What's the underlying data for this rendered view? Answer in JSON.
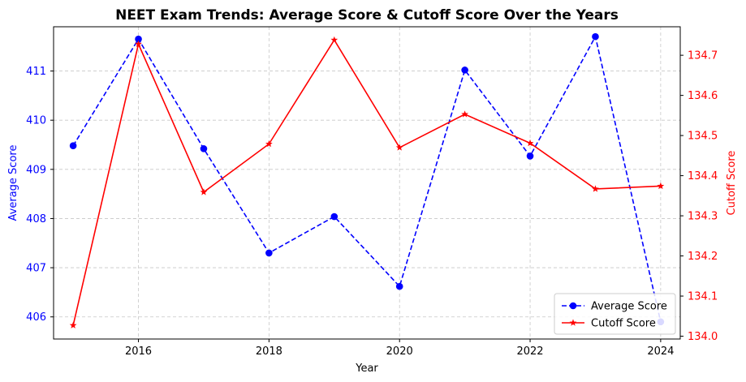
{
  "chart_data": {
    "type": "line",
    "title": "NEET Exam Trends: Average Score & Cutoff Score Over the Years",
    "xlabel": "Year",
    "ylabel_left": "Average Score",
    "ylabel_right": "Cutoff Score",
    "x": [
      2015,
      2016,
      2017,
      2018,
      2019,
      2020,
      2021,
      2022,
      2023,
      2024
    ],
    "xlim": [
      2014.7,
      2024.3
    ],
    "x_ticks": [
      2016,
      2018,
      2020,
      2022,
      2024
    ],
    "series": [
      {
        "name": "Average Score",
        "axis": "left",
        "color": "#0000ff",
        "line_style": "dashed",
        "marker": "circle",
        "values": [
          409.48,
          411.65,
          409.42,
          407.3,
          408.04,
          406.62,
          411.02,
          409.27,
          411.7,
          405.9
        ]
      },
      {
        "name": "Cutoff Score",
        "axis": "right",
        "color": "#ff0000",
        "line_style": "solid",
        "marker": "star",
        "values": [
          134.027,
          134.728,
          134.359,
          134.479,
          134.738,
          134.47,
          134.553,
          134.481,
          134.367,
          134.374
        ]
      }
    ],
    "ylim_left": [
      405.55,
      411.9
    ],
    "yticks_left": [
      406,
      407,
      408,
      409,
      410,
      411
    ],
    "ylim_right": [
      133.993,
      134.771
    ],
    "yticks_right": [
      134.0,
      134.1,
      134.2,
      134.3,
      134.4,
      134.5,
      134.6,
      134.7
    ],
    "grid": true,
    "legend_position": "lower-right",
    "left_axis_color": "#0000ff",
    "right_axis_color": "#ff0000"
  }
}
